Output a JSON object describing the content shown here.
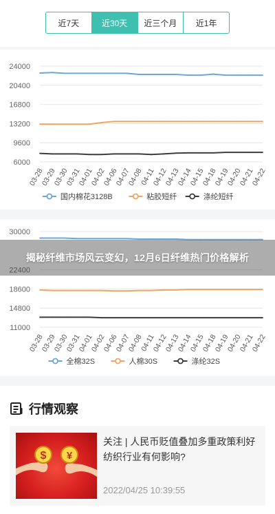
{
  "tabs": [
    {
      "label": "近7天",
      "active": false
    },
    {
      "label": "近30天",
      "active": true
    },
    {
      "label": "近三个月",
      "active": false
    },
    {
      "label": "近1年",
      "active": false
    }
  ],
  "colors": {
    "accent": "#3fbfb0",
    "series_blue": "#6aa6d8",
    "series_orange": "#f0a564",
    "series_dark": "#3c3c3c"
  },
  "banner": {
    "title": "揭秘纤维市场风云变幻，12月6日纤维热门价格解析"
  },
  "chart_data": [
    {
      "type": "line",
      "x": [
        "03-28",
        "03-29",
        "03-30",
        "03-31",
        "04-01",
        "04-02",
        "04-06",
        "04-07",
        "04-08",
        "04-11",
        "04-12",
        "04-13",
        "04-14",
        "04-15",
        "04-18",
        "04-19",
        "04-20",
        "04-21",
        "04-22"
      ],
      "yticks": [
        24000,
        20400,
        16800,
        13200,
        9600,
        6000
      ],
      "ylim": [
        6000,
        24000
      ],
      "series": [
        {
          "name": "国内棉花3128B",
          "color": "#6aa6d8",
          "values": [
            22700,
            22800,
            22650,
            22650,
            22650,
            22650,
            22650,
            22650,
            22450,
            22450,
            22450,
            22450,
            22300,
            22300,
            22500,
            22300,
            22300,
            22300,
            22300
          ]
        },
        {
          "name": "粘胶短纤",
          "color": "#f0a564",
          "values": [
            13100,
            13100,
            13100,
            13100,
            13100,
            13400,
            13600,
            13600,
            13600,
            13600,
            13600,
            13600,
            13600,
            13600,
            13600,
            13600,
            13600,
            13600,
            13600
          ]
        },
        {
          "name": "涤纶短纤",
          "color": "#3c3c3c",
          "values": [
            7600,
            7500,
            7500,
            7500,
            7400,
            7400,
            7500,
            7500,
            7500,
            7400,
            7500,
            7650,
            7700,
            7700,
            7700,
            7800,
            7800,
            7800,
            7800
          ]
        }
      ],
      "grid": true,
      "legend": "bottom"
    },
    {
      "type": "line",
      "x": [
        "03-28",
        "03-29",
        "03-30",
        "03-31",
        "04-01",
        "04-02",
        "04-06",
        "04-07",
        "04-08",
        "04-11",
        "04-12",
        "04-13",
        "04-14",
        "04-15",
        "04-18",
        "04-19",
        "04-20",
        "04-21",
        "04-22"
      ],
      "yticks": [
        30000,
        22400,
        18600,
        14800,
        11000
      ],
      "ylim": [
        11000,
        30000
      ],
      "series": [
        {
          "name": "全棉32S",
          "color": "#6aa6d8",
          "values": [
            28700,
            28700,
            28700,
            28600,
            28600,
            28600,
            28600,
            28600,
            28500,
            28500,
            28500,
            28500,
            28400,
            28400,
            28400,
            28400,
            28400,
            28400,
            28400
          ]
        },
        {
          "name": "人棉30S",
          "color": "#f0a564",
          "values": [
            18400,
            18300,
            18300,
            18300,
            18300,
            18300,
            18200,
            18200,
            18300,
            18300,
            18400,
            18400,
            18500,
            18500,
            18500,
            18500,
            18500,
            18500,
            18500
          ]
        },
        {
          "name": "涤纶32S",
          "color": "#3c3c3c",
          "values": [
            13000,
            13000,
            13000,
            13000,
            13000,
            12900,
            12900,
            12900,
            12900,
            12900,
            12900,
            12900,
            12900,
            12900,
            12900,
            12900,
            12900,
            12900,
            12900
          ]
        }
      ],
      "grid": true,
      "legend": "bottom"
    }
  ],
  "news": {
    "section_title": "行情观察",
    "items": [
      {
        "title": "关注 | 人民币贬值叠加多重政策利好 纺织行业有何影响?",
        "time": "2022/04/25 10:39:55"
      }
    ]
  }
}
